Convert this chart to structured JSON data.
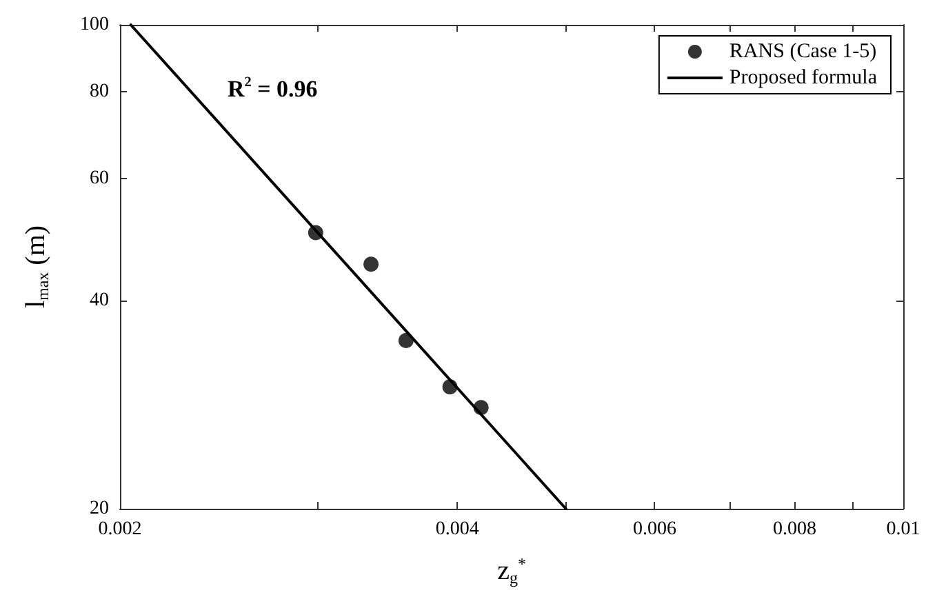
{
  "chart_data": {
    "type": "scatter",
    "xlabel": "z$_{g}$$^{*}$",
    "ylabel": "l$_{max}$ (m)",
    "annotations": [
      "R$^{2}$ = 0.96"
    ],
    "log": "xy",
    "xlim": [
      0.002,
      0.01
    ],
    "xticks": [
      0.002,
      {
        "value": 0.003,
        "label": null
      },
      0.004,
      {
        "value": 0.005,
        "label": null
      },
      0.006,
      {
        "value": 0.007,
        "label": null
      },
      0.008,
      {
        "value": 0.009,
        "label": null
      },
      0.01
    ],
    "ylim": [
      20,
      100
    ],
    "yticks": [
      20,
      40,
      60,
      80,
      100
    ],
    "grid": false,
    "legend": "top right",
    "marker": "circle",
    "series": [
      {
        "name": "RANS (Case 1-5)",
        "color": "#000000",
        "x": [
          0.00299,
          0.00335,
          0.0036,
          0.00394,
          0.0042
        ],
        "values": [
          50.1,
          45.1,
          35.0,
          30.0,
          28.0
        ]
      },
      {
        "name": "Proposed formula",
        "type": "line",
        "color": "#000000",
        "line_style": "solid",
        "marker": "none",
        "x": [
          0.002045,
          0.005
        ],
        "values": [
          100,
          20
        ]
      }
    ]
  }
}
